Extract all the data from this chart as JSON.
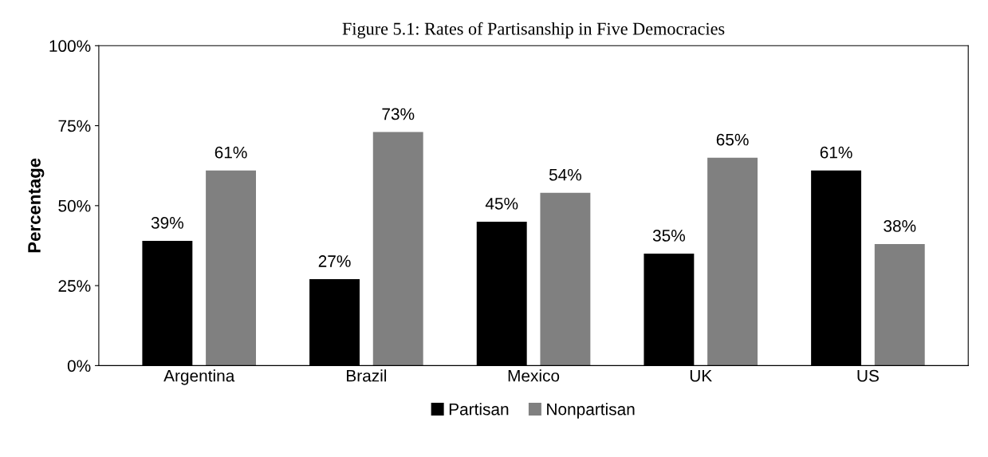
{
  "chart_data": {
    "type": "bar",
    "title": "Figure 5.1: Rates of Partisanship in Five Democracies",
    "ylabel": "Percentage",
    "categories": [
      "Argentina",
      "Brazil",
      "Mexico",
      "UK",
      "US"
    ],
    "series": [
      {
        "name": "Partisan",
        "color": "#000000",
        "values": [
          39,
          27,
          45,
          35,
          61
        ],
        "value_labels": [
          "39%",
          "27%",
          "45%",
          "35%",
          "61%"
        ]
      },
      {
        "name": "Nonpartisan",
        "color": "#808080",
        "values": [
          61,
          73,
          54,
          65,
          38
        ],
        "value_labels": [
          "61%",
          "73%",
          "54%",
          "65%",
          "38%"
        ]
      }
    ],
    "ylim": [
      0,
      100
    ],
    "yticks": [
      {
        "value": 0,
        "label": "0%"
      },
      {
        "value": 25,
        "label": "25%"
      },
      {
        "value": 50,
        "label": "50%"
      },
      {
        "value": 75,
        "label": "75%"
      },
      {
        "value": 100,
        "label": "100%"
      }
    ],
    "grid": false,
    "legend": "bottom"
  }
}
